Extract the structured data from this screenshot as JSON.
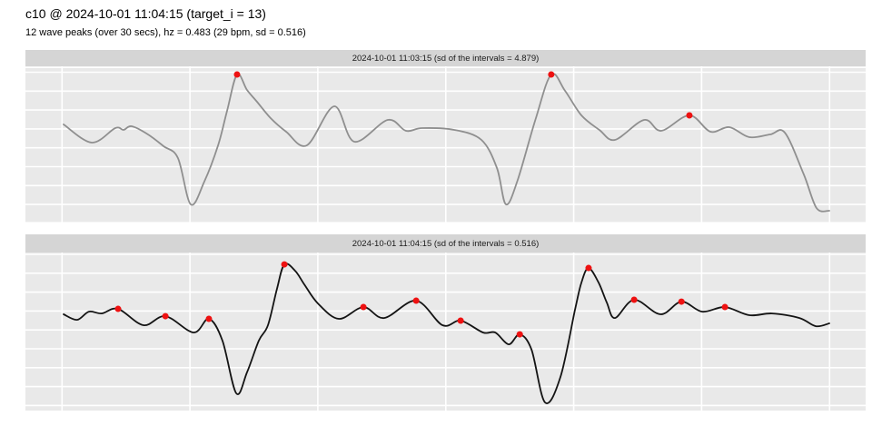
{
  "header": {
    "title": "c10 @ 2024-10-01 11:04:15 (target_i = 13)",
    "subtitle": "12 wave peaks (over 30 secs), hz = 0.483 (29 bpm, sd = 0.516)"
  },
  "colors": {
    "background": "#FFFFFF",
    "panel_bg": "#E9E9E9",
    "strip_bg": "#D5D5D5",
    "grid": "#FFFFFF",
    "text": "#000000",
    "peak_marker": "#EE1111",
    "line_top": "#8F8F8F",
    "line_bottom": "#141414"
  },
  "chart_data": [
    {
      "type": "line",
      "title": "2024-10-01 11:03:15 (sd of the intervals = 4.879)",
      "x_unit": "seconds",
      "x_range": [
        0,
        30
      ],
      "grid": true,
      "legend": "none",
      "axis_labels": "none",
      "line_color": "#8F8F8F",
      "x": [
        0.06,
        1.16,
        2.08,
        2.4,
        2.72,
        3.36,
        3.97,
        4.53,
        5.03,
        5.56,
        6.1,
        6.45,
        6.84,
        7.23,
        7.62,
        8.15,
        8.76,
        9.57,
        10.64,
        11.42,
        12.73,
        13.44,
        14.08,
        15.33,
        16.39,
        17.0,
        17.35,
        17.81,
        18.52,
        19.12,
        19.66,
        20.3,
        21.0,
        21.61,
        22.75,
        23.42,
        24.52,
        25.34,
        26.08,
        26.86,
        27.68,
        28.25,
        28.99,
        29.49,
        29.99
      ],
      "y": [
        0.26,
        0.029,
        0.214,
        0.191,
        0.237,
        0.133,
        -0.017,
        -0.168,
        -0.757,
        -0.468,
        -0.006,
        0.434,
        0.896,
        0.699,
        0.549,
        0.341,
        0.168,
        -0.006,
        0.491,
        0.04,
        0.318,
        0.179,
        0.214,
        0.191,
        0.064,
        -0.295,
        -0.757,
        -0.445,
        0.341,
        0.896,
        0.688,
        0.376,
        0.191,
        0.064,
        0.318,
        0.179,
        0.376,
        0.168,
        0.225,
        0.098,
        0.133,
        0.156,
        -0.376,
        -0.803,
        -0.838
      ],
      "peaks": {
        "x": [
          6.84,
          19.12,
          24.52
        ],
        "y": [
          0.896,
          0.896,
          0.376
        ]
      }
    },
    {
      "type": "line",
      "title": "2024-10-01 11:04:15 (sd of the intervals = 0.516)",
      "x_unit": "seconds",
      "x_range": [
        0,
        30
      ],
      "grid": true,
      "legend": "none",
      "axis_labels": "none",
      "line_color": "#141414",
      "x": [
        0.06,
        0.59,
        1.05,
        1.55,
        2.19,
        3.18,
        4.04,
        5.14,
        5.74,
        6.27,
        6.81,
        7.23,
        7.69,
        8.05,
        8.4,
        8.69,
        9.11,
        9.47,
        10.0,
        10.82,
        11.78,
        12.59,
        13.84,
        14.87,
        15.58,
        16.46,
        16.93,
        17.46,
        17.89,
        18.35,
        18.88,
        19.48,
        20.05,
        20.3,
        20.58,
        20.97,
        21.29,
        21.61,
        22.36,
        23.39,
        24.21,
        25.02,
        25.91,
        26.86,
        27.75,
        28.82,
        29.46,
        29.99
      ],
      "y": [
        0.223,
        0.153,
        0.257,
        0.234,
        0.292,
        0.084,
        0.199,
        -0.009,
        0.165,
        -0.113,
        -0.783,
        -0.517,
        -0.113,
        0.084,
        0.546,
        0.858,
        0.777,
        0.604,
        0.361,
        0.165,
        0.315,
        0.176,
        0.396,
        0.084,
        0.142,
        -0.009,
        -0.009,
        -0.159,
        -0.032,
        -0.228,
        -0.899,
        -0.575,
        0.28,
        0.627,
        0.812,
        0.627,
        0.373,
        0.176,
        0.408,
        0.223,
        0.384,
        0.257,
        0.315,
        0.211,
        0.234,
        0.176,
        0.072,
        0.107
      ],
      "peaks": {
        "x": [
          2.19,
          4.04,
          5.74,
          8.69,
          11.78,
          13.84,
          15.58,
          17.89,
          20.58,
          22.36,
          24.21,
          25.91
        ],
        "y": [
          0.292,
          0.199,
          0.165,
          0.858,
          0.315,
          0.396,
          0.142,
          -0.032,
          0.812,
          0.408,
          0.384,
          0.315
        ]
      }
    }
  ]
}
